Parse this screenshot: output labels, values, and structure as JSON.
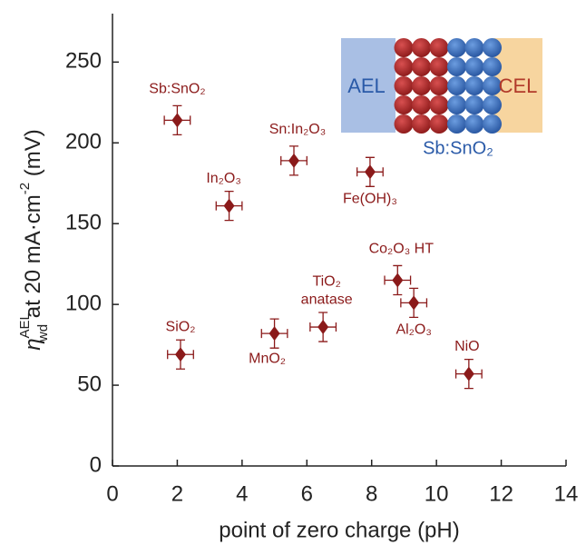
{
  "chart_data": {
    "type": "scatter",
    "x_label": "point of zero charge (pH)",
    "y_label": {
      "symbol": "η",
      "superscript": "AEL",
      "subscript": "wd",
      "text": " at 20 mA·cm",
      "exponent": "-2",
      "unit": " (mV)"
    },
    "xlim": [
      0,
      14
    ],
    "xticks": [
      0,
      2,
      4,
      6,
      8,
      10,
      12,
      14
    ],
    "ylim": [
      0,
      280
    ],
    "yticks": [
      0,
      50,
      100,
      150,
      200,
      250
    ],
    "series": [
      {
        "color": "#8b1a1a",
        "x": [
          2.0,
          3.6,
          5.6,
          7.95,
          8.8,
          9.3,
          11.0,
          2.1,
          5.0,
          6.5
        ],
        "values": [
          214,
          161,
          189,
          182,
          115,
          101,
          57,
          69,
          82,
          86
        ],
        "xerr": [
          0.4,
          0.4,
          0.4,
          0.4,
          0.4,
          0.4,
          0.4,
          0.4,
          0.4,
          0.4
        ],
        "yerr": [
          9,
          9,
          9,
          9,
          9,
          9,
          9,
          9,
          9,
          9
        ],
        "point_labels": [
          [
            "Sb:SnO₂"
          ],
          [
            "In₂O₃"
          ],
          [
            "Sn:In₂O₃"
          ],
          [
            "Fe(OH)₃"
          ],
          [
            "Co₂O₃ HT"
          ],
          [
            "Al₂O₃"
          ],
          [
            "NiO"
          ],
          [
            "SiO₂"
          ],
          [
            "MnO₂"
          ],
          [
            "TiO₂",
            "anatase"
          ]
        ]
      }
    ],
    "inset": {
      "left_label": "AEL",
      "right_label": "CEL",
      "bottom_label": "Sb:SnO₂"
    }
  }
}
